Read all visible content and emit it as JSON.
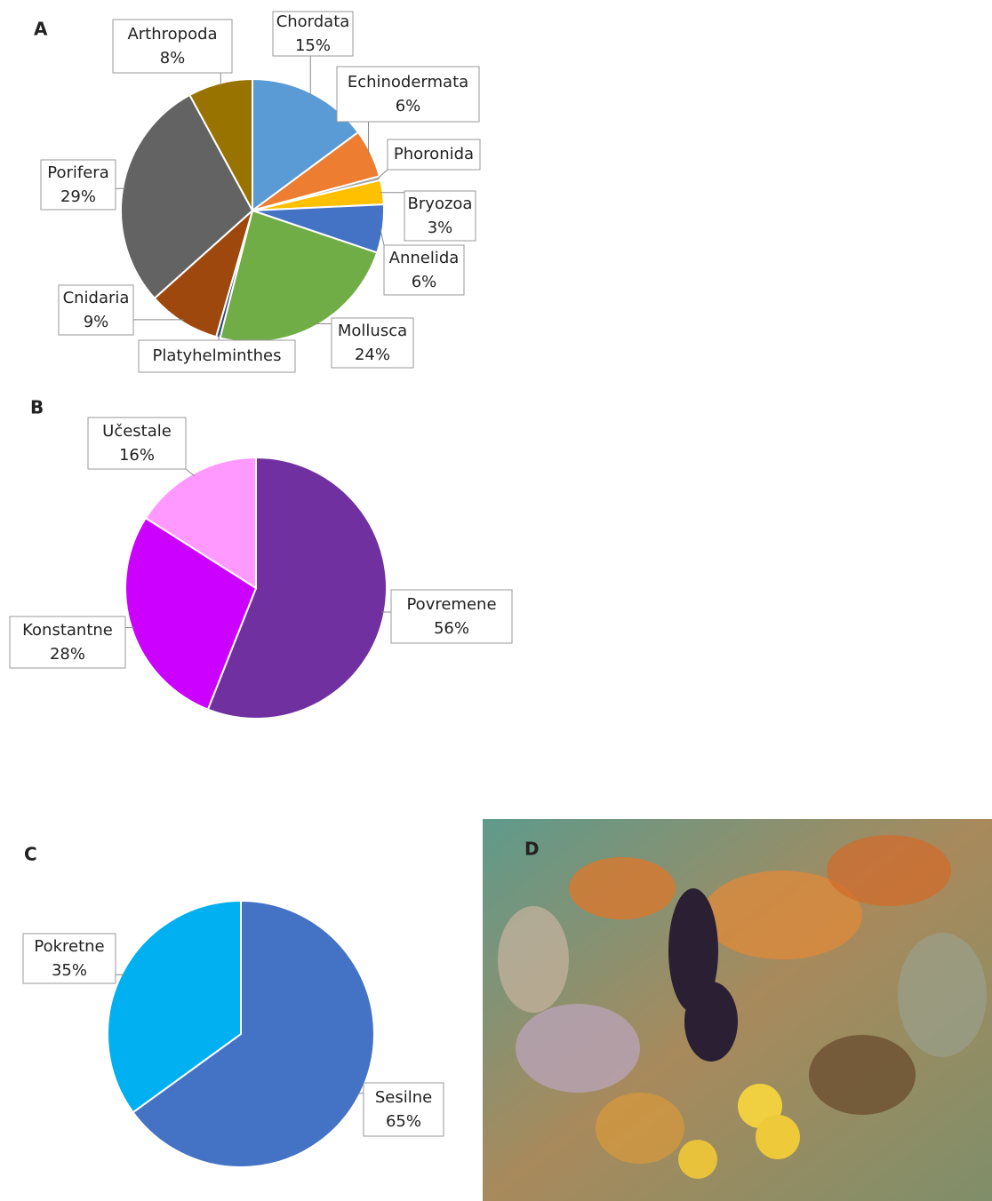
{
  "chart_data": [
    {
      "type": "pie",
      "panel": "A",
      "categories": [
        "Chordata",
        "Echinodermata",
        "Phoronida",
        "Bryozoa",
        "Annelida",
        "Mollusca",
        "Platyhelminthes",
        "Cnidaria",
        "Porifera",
        "Arthropoda"
      ],
      "values": [
        15,
        6,
        0.5,
        3,
        6,
        24,
        0.5,
        9,
        29,
        8
      ],
      "value_labels": [
        "15%",
        "6%",
        null,
        "3%",
        "6%",
        "24%",
        null,
        "9%",
        "29%",
        "8%"
      ],
      "colors": [
        "#5b9bd5",
        "#ed7d31",
        "#a5a5a5",
        "#ffc000",
        "#4472c4",
        "#70ad47",
        "#264478",
        "#9e480e",
        "#636363",
        "#997300"
      ]
    },
    {
      "type": "pie",
      "panel": "B",
      "categories": [
        "Povremene",
        "Konstantne",
        "Učestale"
      ],
      "values": [
        56,
        28,
        16
      ],
      "value_labels": [
        "56%",
        "28%",
        "16%"
      ],
      "colors": [
        "#7030a0",
        "#cc00ff",
        "#ff99ff"
      ]
    },
    {
      "type": "pie",
      "panel": "C",
      "categories": [
        "Sesilne",
        "Pokretne"
      ],
      "values": [
        65,
        35
      ],
      "value_labels": [
        "65%",
        "35%"
      ],
      "colors": [
        "#4472c4",
        "#00b0f0"
      ]
    }
  ],
  "photo": {
    "panel": "D"
  }
}
